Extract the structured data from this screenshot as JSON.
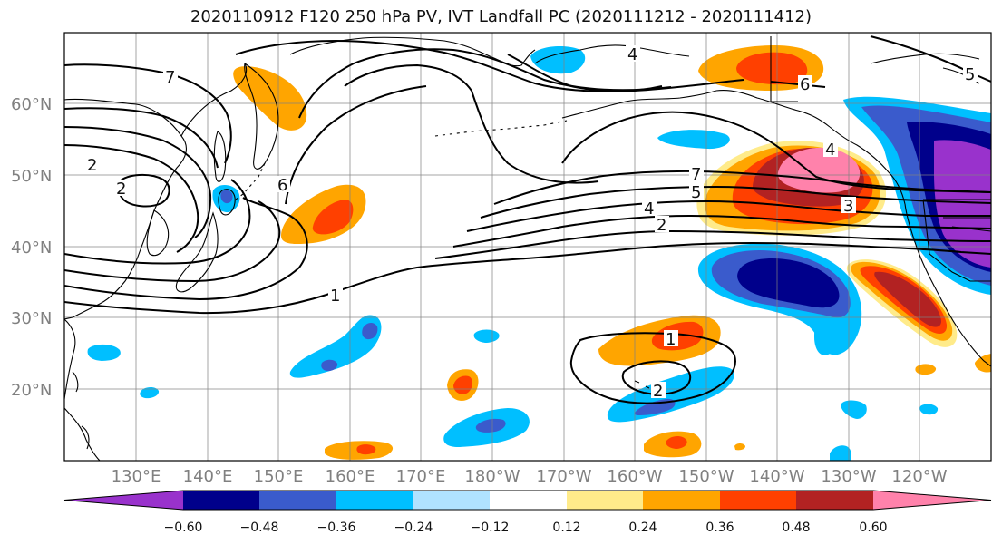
{
  "title": "2020110912 F120 250 hPa PV, IVT Landfall PC (2020111212 - 2020111412)",
  "lon_labels": [
    "130°E",
    "140°E",
    "150°E",
    "160°E",
    "170°E",
    "180°W",
    "170°W",
    "160°W",
    "150°W",
    "140°W",
    "130°W",
    "120°W"
  ],
  "lat_labels": [
    "60°N",
    "50°N",
    "40°N",
    "30°N",
    "20°N"
  ],
  "colorbar": {
    "colors": [
      "#9932cc",
      "#00008b",
      "#3a5bcc",
      "#00bfff",
      "#b0e2ff",
      "#ffffff",
      "#ffeb8a",
      "#ffa500",
      "#ff4000",
      "#b22222",
      "#ff82ab"
    ],
    "tick_labels": [
      "−0.60",
      "−0.48",
      "−0.36",
      "−0.24",
      "−0.12",
      "0.12",
      "0.24",
      "0.36",
      "0.48",
      "0.60"
    ]
  },
  "contour_labels": [
    "7",
    "2",
    "2",
    "6",
    "1",
    "1",
    "2",
    "7",
    "5",
    "4",
    "2",
    "4",
    "3",
    "6",
    "5",
    "4"
  ]
}
